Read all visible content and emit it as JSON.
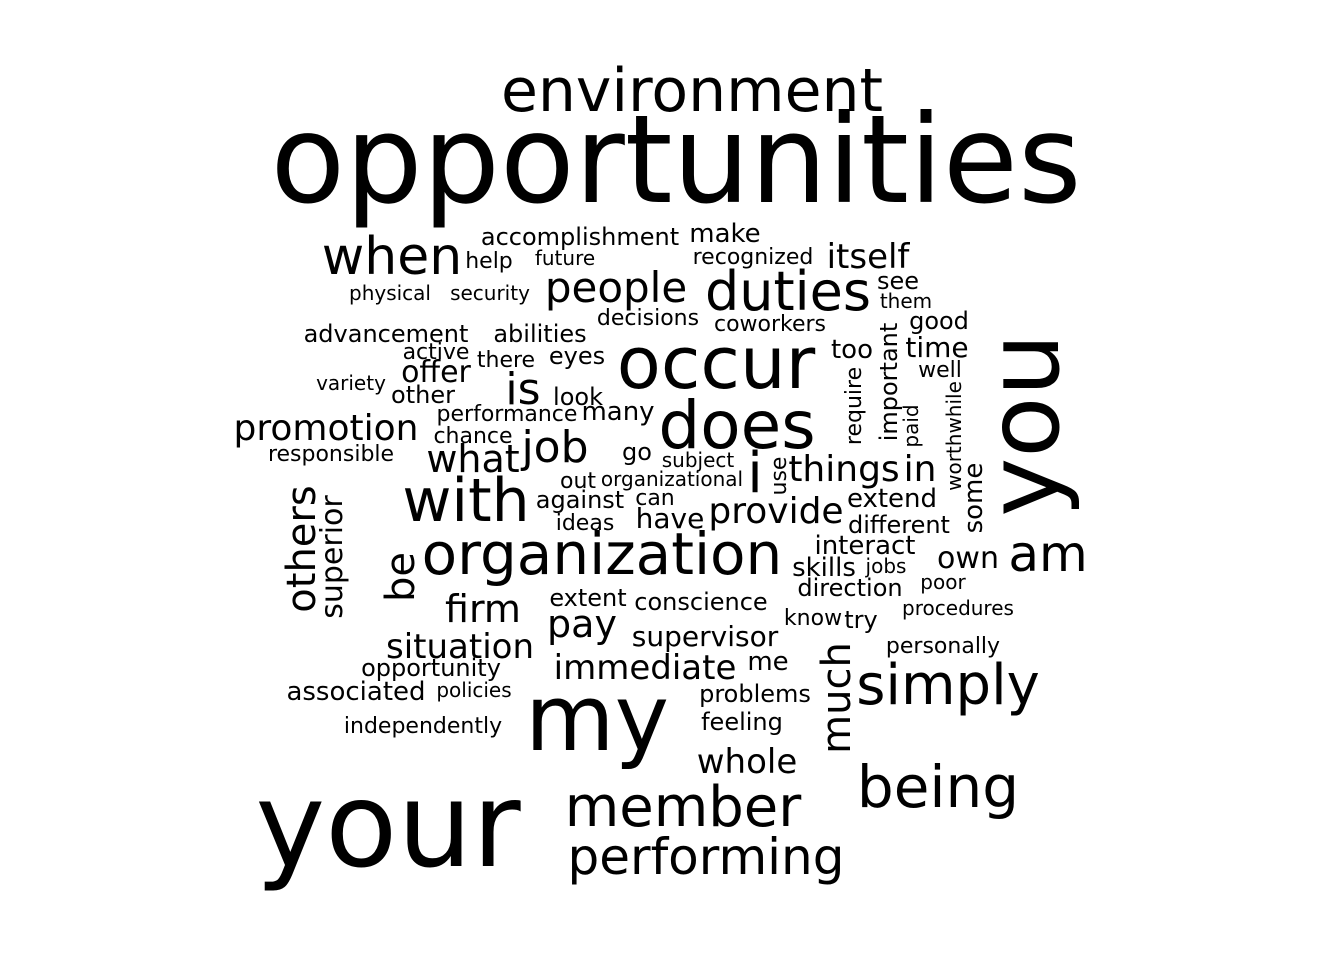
{
  "word_cloud": {
    "text_color": "#000000",
    "background_color": "#ffffff",
    "words": [
      "opportunities",
      "environment",
      "when",
      "accomplishment",
      "make",
      "help",
      "future",
      "recognized",
      "itself",
      "see",
      "them",
      "physical",
      "security",
      "people",
      "duties",
      "decisions",
      "coworkers",
      "good",
      "advancement",
      "abilities",
      "active",
      "there",
      "eyes",
      "occur",
      "too",
      "time",
      "you",
      "offer",
      "variety",
      "other",
      "is",
      "look",
      "well",
      "important",
      "require",
      "paid",
      "worthwhile",
      "promotion",
      "performance",
      "many",
      "does",
      "chance",
      "job",
      "responsible",
      "what",
      "go",
      "subject",
      "i",
      "things",
      "in",
      "use",
      "some",
      "with",
      "out",
      "organizational",
      "can",
      "against",
      "extend",
      "others",
      "superior",
      "be",
      "ideas",
      "have",
      "provide",
      "different",
      "organization",
      "interact",
      "am",
      "own",
      "skills",
      "jobs",
      "poor",
      "direction",
      "firm",
      "extent",
      "conscience",
      "procedures",
      "pay",
      "know",
      "try",
      "situation",
      "supervisor",
      "personally",
      "much",
      "opportunity",
      "immediate",
      "me",
      "simply",
      "associated",
      "policies",
      "my",
      "problems",
      "feeling",
      "independently",
      "whole",
      "being",
      "your",
      "member",
      "performing"
    ]
  }
}
